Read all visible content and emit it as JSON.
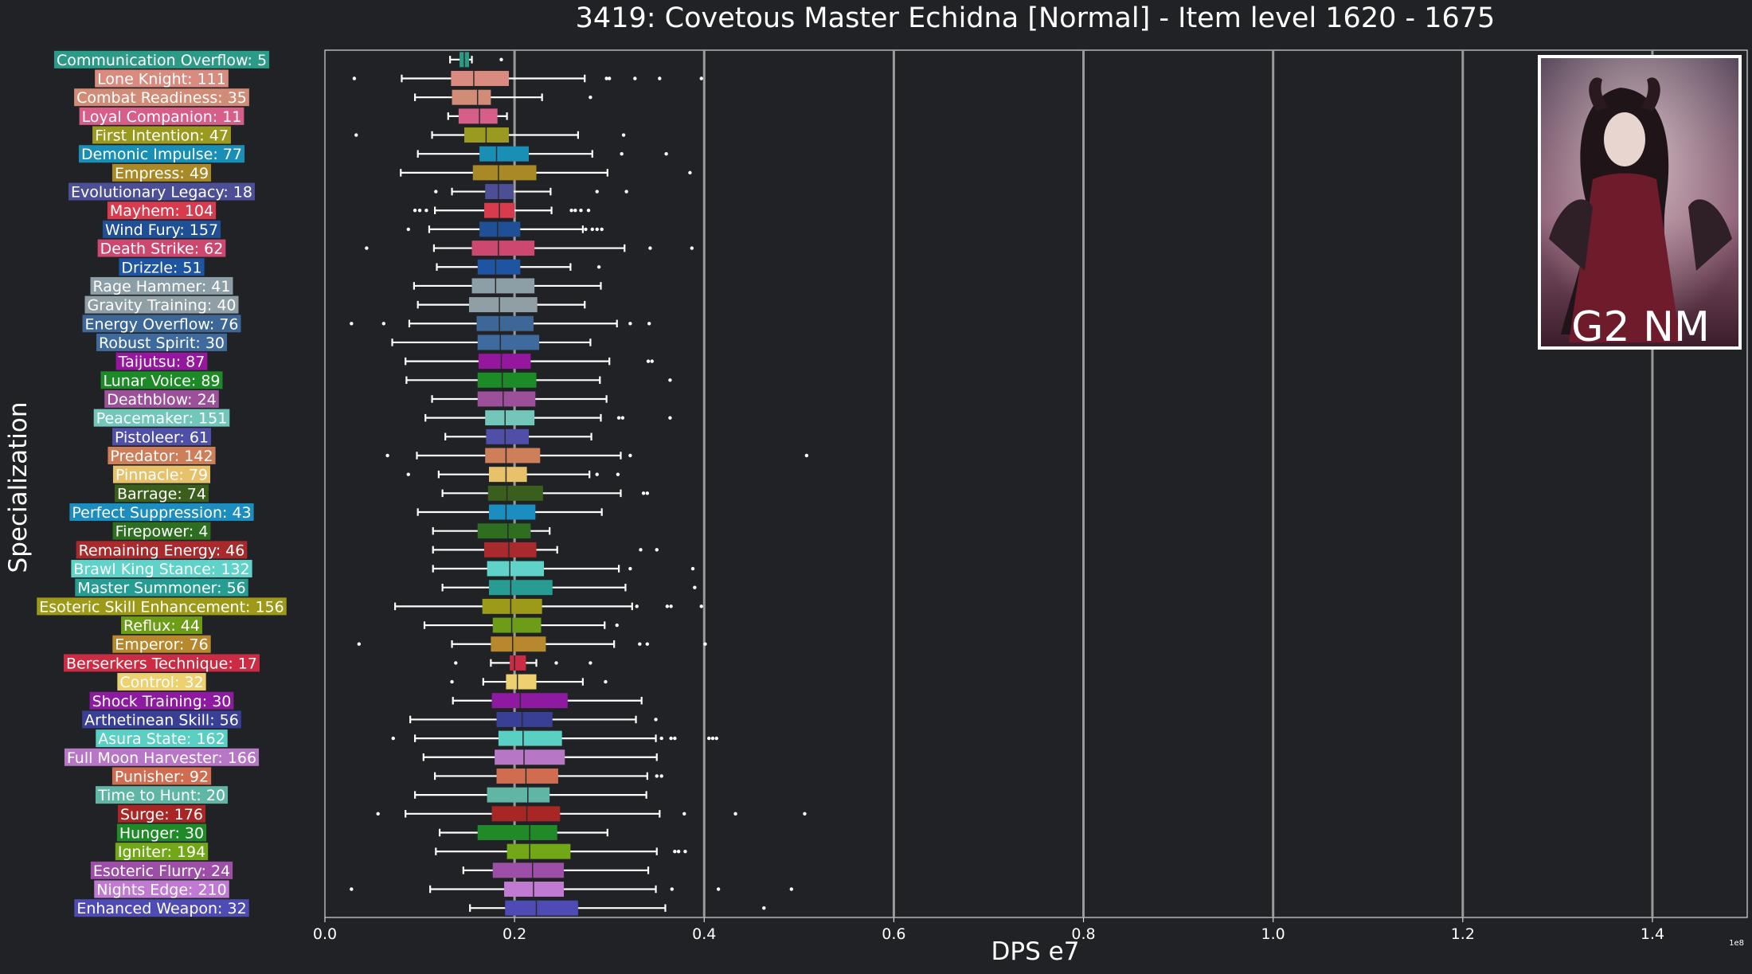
{
  "chart_data": {
    "type": "boxplot",
    "title": "3419: Covetous Master Echidna [Normal] - Item level 1620 - 1675",
    "xlabel": "DPS e7",
    "ylabel": "Specialization",
    "xlim": [
      0,
      1.5
    ],
    "x_ticks": [
      "0.0",
      "0.2",
      "0.4",
      "0.6",
      "0.8",
      "1.0",
      "1.2",
      "1.4"
    ],
    "x_offset_label": "1e8",
    "vertical_lines_at": [
      0.2,
      0.4,
      0.6,
      0.8,
      1.0,
      1.2,
      1.4
    ],
    "inset_text": "G2 NM",
    "categories": [
      {
        "label": "Communication Overflow: 5",
        "color": "#2b9a87",
        "whisker": [
          0.132,
          0.155
        ],
        "q": [
          0.142,
          0.147,
          0.152
        ],
        "outliers": [
          0.186
        ]
      },
      {
        "label": "Lone Knight: 111",
        "color": "#d98b7f",
        "whisker": [
          0.081,
          0.274
        ],
        "q": [
          0.133,
          0.157,
          0.194
        ],
        "outliers": [
          0.031,
          0.297,
          0.3,
          0.327,
          0.353,
          0.397
        ]
      },
      {
        "label": "Combat Readiness: 35",
        "color": "#d08c76",
        "whisker": [
          0.095,
          0.229
        ],
        "q": [
          0.134,
          0.161,
          0.175
        ],
        "outliers": [
          0.28
        ]
      },
      {
        "label": "Loyal Companion: 11",
        "color": "#d85e8a",
        "whisker": [
          0.13,
          0.192
        ],
        "q": [
          0.141,
          0.163,
          0.182
        ],
        "outliers": []
      },
      {
        "label": "First Intention: 47",
        "color": "#9a9a21",
        "whisker": [
          0.113,
          0.267
        ],
        "q": [
          0.147,
          0.17,
          0.194
        ],
        "outliers": [
          0.033,
          0.315
        ]
      },
      {
        "label": "Demonic Impulse: 77",
        "color": "#1a8fb5",
        "whisker": [
          0.098,
          0.282
        ],
        "q": [
          0.163,
          0.181,
          0.215
        ],
        "outliers": [
          0.313,
          0.36
        ]
      },
      {
        "label": "Empress: 49",
        "color": "#a88926",
        "whisker": [
          0.08,
          0.298
        ],
        "q": [
          0.156,
          0.183,
          0.223
        ],
        "outliers": [
          0.385
        ]
      },
      {
        "label": "Evolutionary Legacy: 18",
        "color": "#4d4f96",
        "whisker": [
          0.134,
          0.238
        ],
        "q": [
          0.169,
          0.183,
          0.199
        ],
        "outliers": [
          0.117,
          0.287,
          0.318
        ]
      },
      {
        "label": "Mayhem: 104",
        "color": "#d83a4e",
        "whisker": [
          0.116,
          0.239
        ],
        "q": [
          0.168,
          0.184,
          0.2
        ],
        "outliers": [
          0.095,
          0.1,
          0.107,
          0.26,
          0.264,
          0.27,
          0.278
        ]
      },
      {
        "label": "Wind Fury: 157",
        "color": "#1f4f95",
        "whisker": [
          0.11,
          0.272
        ],
        "q": [
          0.163,
          0.182,
          0.206
        ],
        "outliers": [
          0.088,
          0.275,
          0.282,
          0.287,
          0.292
        ]
      },
      {
        "label": "Death Strike: 62",
        "color": "#cc4870",
        "whisker": [
          0.115,
          0.316
        ],
        "q": [
          0.155,
          0.183,
          0.221
        ],
        "outliers": [
          0.044,
          0.343,
          0.387
        ]
      },
      {
        "label": "Drizzle: 51",
        "color": "#1d55a3",
        "whisker": [
          0.118,
          0.259
        ],
        "q": [
          0.161,
          0.18,
          0.206
        ],
        "outliers": [
          0.289
        ]
      },
      {
        "label": "Rage Hammer: 41",
        "color": "#8d9fa6",
        "whisker": [
          0.094,
          0.291
        ],
        "q": [
          0.155,
          0.18,
          0.221
        ],
        "outliers": []
      },
      {
        "label": "Gravity Training: 40",
        "color": "#909fa5",
        "whisker": [
          0.098,
          0.274
        ],
        "q": [
          0.152,
          0.184,
          0.224
        ],
        "outliers": []
      },
      {
        "label": "Energy Overflow: 76",
        "color": "#3d6796",
        "whisker": [
          0.089,
          0.308
        ],
        "q": [
          0.16,
          0.184,
          0.22
        ],
        "outliers": [
          0.028,
          0.062,
          0.322,
          0.342
        ]
      },
      {
        "label": "Robust Spirit: 30",
        "color": "#3f6a9d",
        "whisker": [
          0.071,
          0.28
        ],
        "q": [
          0.161,
          0.185,
          0.226
        ],
        "outliers": []
      },
      {
        "label": "Taijutsu: 87",
        "color": "#94179e",
        "whisker": [
          0.085,
          0.3
        ],
        "q": [
          0.162,
          0.186,
          0.217
        ],
        "outliers": [
          0.341,
          0.345
        ]
      },
      {
        "label": "Lunar Voice: 89",
        "color": "#1c8a27",
        "whisker": [
          0.086,
          0.29
        ],
        "q": [
          0.161,
          0.187,
          0.223
        ],
        "outliers": [
          0.364
        ]
      },
      {
        "label": "Deathblow: 24",
        "color": "#9d509a",
        "whisker": [
          0.113,
          0.297
        ],
        "q": [
          0.161,
          0.188,
          0.222
        ],
        "outliers": []
      },
      {
        "label": "Peacemaker: 151",
        "color": "#72c7ba",
        "whisker": [
          0.106,
          0.291
        ],
        "q": [
          0.169,
          0.19,
          0.221
        ],
        "outliers": [
          0.31,
          0.314,
          0.364
        ]
      },
      {
        "label": "Pistoleer: 61",
        "color": "#4f4fa8",
        "whisker": [
          0.127,
          0.281
        ],
        "q": [
          0.17,
          0.19,
          0.215
        ],
        "outliers": []
      },
      {
        "label": "Predator: 142",
        "color": "#cf7e5a",
        "whisker": [
          0.097,
          0.312
        ],
        "q": [
          0.169,
          0.191,
          0.227
        ],
        "outliers": [
          0.066,
          0.322,
          0.508
        ]
      },
      {
        "label": "Pinnacle: 79",
        "color": "#e8c16b",
        "whisker": [
          0.12,
          0.279
        ],
        "q": [
          0.173,
          0.191,
          0.213
        ],
        "outliers": [
          0.088,
          0.287,
          0.309
        ]
      },
      {
        "label": "Barrage: 74",
        "color": "#3a5e1b",
        "whisker": [
          0.124,
          0.312
        ],
        "q": [
          0.172,
          0.192,
          0.23
        ],
        "outliers": [
          0.336,
          0.34
        ]
      },
      {
        "label": "Perfect Suppression: 43",
        "color": "#1b8dbf",
        "whisker": [
          0.098,
          0.292
        ],
        "q": [
          0.173,
          0.191,
          0.222
        ],
        "outliers": []
      },
      {
        "label": "Firepower: 4",
        "color": "#2d6e20",
        "whisker": [
          0.114,
          0.237
        ],
        "q": [
          0.161,
          0.193,
          0.217
        ],
        "outliers": []
      },
      {
        "label": "Remaining Energy: 46",
        "color": "#a82a2d",
        "whisker": [
          0.114,
          0.245
        ],
        "q": [
          0.168,
          0.194,
          0.223
        ],
        "outliers": [
          0.333,
          0.35
        ]
      },
      {
        "label": "Brawl King Stance: 132",
        "color": "#5fd2c9",
        "whisker": [
          0.114,
          0.31
        ],
        "q": [
          0.171,
          0.195,
          0.231
        ],
        "outliers": [
          0.322,
          0.388
        ]
      },
      {
        "label": "Master Summoner: 56",
        "color": "#269c93",
        "whisker": [
          0.124,
          0.317
        ],
        "q": [
          0.173,
          0.196,
          0.24
        ],
        "outliers": [
          0.39
        ]
      },
      {
        "label": "Esoteric Skill Enhancement: 156",
        "color": "#9d9a1a",
        "whisker": [
          0.074,
          0.324
        ],
        "q": [
          0.166,
          0.196,
          0.229
        ],
        "outliers": [
          0.329,
          0.361,
          0.365,
          0.397
        ]
      },
      {
        "label": "Reflux: 44",
        "color": "#6d9c18",
        "whisker": [
          0.105,
          0.295
        ],
        "q": [
          0.177,
          0.197,
          0.228
        ],
        "outliers": [
          0.308
        ]
      },
      {
        "label": "Emperor: 76",
        "color": "#b7882d",
        "whisker": [
          0.134,
          0.305
        ],
        "q": [
          0.175,
          0.198,
          0.233
        ],
        "outliers": [
          0.036,
          0.332,
          0.34,
          0.401
        ]
      },
      {
        "label": "Berserkers Technique: 17",
        "color": "#cc2b44",
        "whisker": [
          0.175,
          0.223
        ],
        "q": [
          0.195,
          0.2,
          0.212
        ],
        "outliers": [
          0.138,
          0.244,
          0.28
        ]
      },
      {
        "label": "Control: 32",
        "color": "#edd070",
        "whisker": [
          0.167,
          0.272
        ],
        "q": [
          0.191,
          0.203,
          0.223
        ],
        "outliers": [
          0.134,
          0.296
        ]
      },
      {
        "label": "Shock Training: 30",
        "color": "#8d1aa0",
        "whisker": [
          0.135,
          0.334
        ],
        "q": [
          0.176,
          0.206,
          0.256
        ],
        "outliers": []
      },
      {
        "label": "Arthetinean Skill: 56",
        "color": "#3a3f96",
        "whisker": [
          0.09,
          0.328
        ],
        "q": [
          0.181,
          0.208,
          0.24
        ],
        "outliers": [
          0.349
        ]
      },
      {
        "label": "Asura State: 162",
        "color": "#5ad0c5",
        "whisker": [
          0.095,
          0.349
        ],
        "q": [
          0.183,
          0.209,
          0.25
        ],
        "outliers": [
          0.072,
          0.355,
          0.365,
          0.369,
          0.405,
          0.409,
          0.413
        ]
      },
      {
        "label": "Full Moon Harvester: 166",
        "color": "#b877c6",
        "whisker": [
          0.104,
          0.35
        ],
        "q": [
          0.179,
          0.21,
          0.253
        ],
        "outliers": []
      },
      {
        "label": "Punisher: 92",
        "color": "#d06d50",
        "whisker": [
          0.116,
          0.34
        ],
        "q": [
          0.181,
          0.212,
          0.246
        ],
        "outliers": [
          0.35,
          0.355
        ]
      },
      {
        "label": "Time to Hunt: 20",
        "color": "#5fb6a4",
        "whisker": [
          0.095,
          0.339
        ],
        "q": [
          0.171,
          0.214,
          0.237
        ],
        "outliers": []
      },
      {
        "label": "Surge: 176",
        "color": "#a82624",
        "whisker": [
          0.085,
          0.353
        ],
        "q": [
          0.176,
          0.213,
          0.248
        ],
        "outliers": [
          0.056,
          0.379,
          0.433,
          0.506
        ]
      },
      {
        "label": "Hunger: 30",
        "color": "#1f8a27",
        "whisker": [
          0.121,
          0.298
        ],
        "q": [
          0.161,
          0.216,
          0.245
        ],
        "outliers": []
      },
      {
        "label": "Igniter: 194",
        "color": "#72a818",
        "whisker": [
          0.117,
          0.35
        ],
        "q": [
          0.192,
          0.216,
          0.259
        ],
        "outliers": [
          0.369,
          0.373,
          0.38
        ]
      },
      {
        "label": "Esoteric Flurry: 24",
        "color": "#9d4fa8",
        "whisker": [
          0.146,
          0.341
        ],
        "q": [
          0.177,
          0.219,
          0.252
        ],
        "outliers": []
      },
      {
        "label": "Nights Edge: 210",
        "color": "#c07ad1",
        "whisker": [
          0.111,
          0.349
        ],
        "q": [
          0.189,
          0.22,
          0.252
        ],
        "outliers": [
          0.028,
          0.366,
          0.415,
          0.492
        ]
      },
      {
        "label": "Enhanced Weapon: 32",
        "color": "#4f4bb4",
        "whisker": [
          0.153,
          0.359
        ],
        "q": [
          0.19,
          0.223,
          0.267
        ],
        "outliers": [
          0.463
        ]
      }
    ]
  }
}
